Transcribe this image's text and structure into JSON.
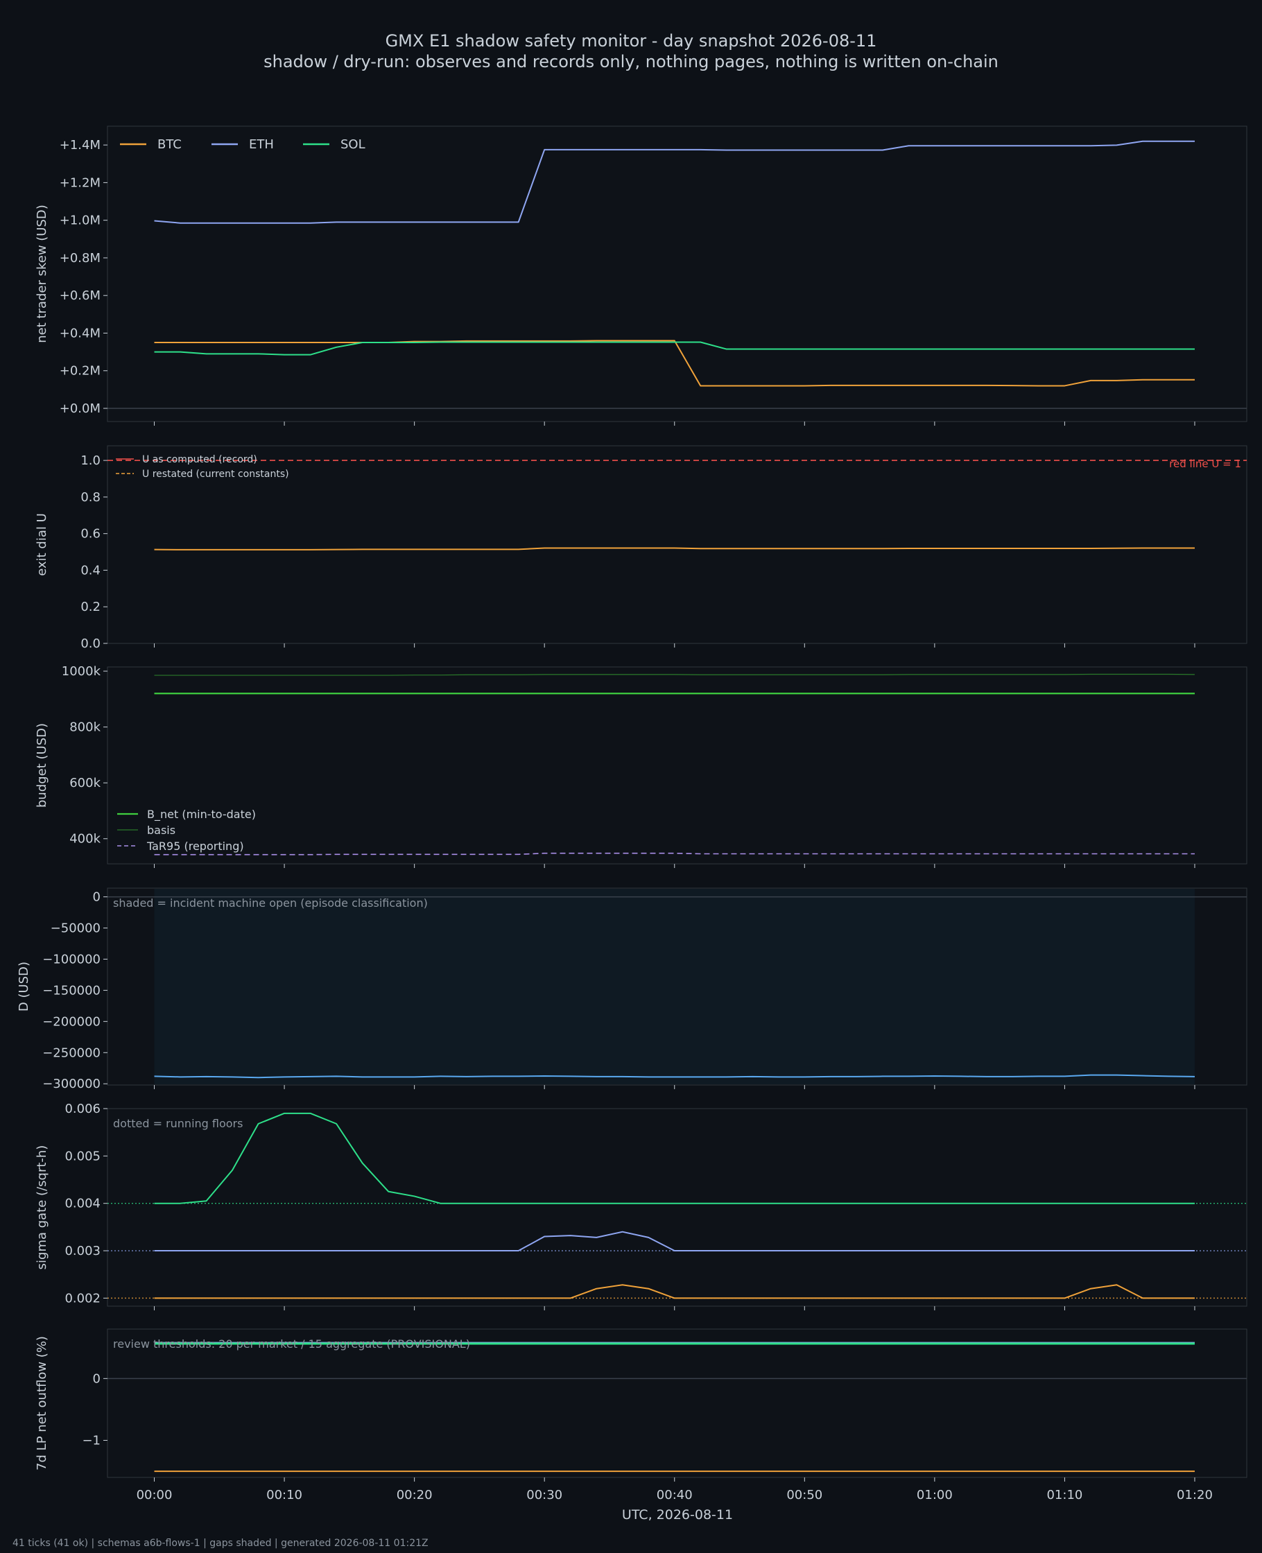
{
  "title": "GMX E1 shadow safety monitor - day snapshot 2026-08-11",
  "subtitle": "shadow / dry-run: observes and records only, nothing pages, nothing is written on-chain",
  "footer": "41 ticks (41 ok) | schemas a6b-flows-1 | gaps shaded | generated 2026-08-11 01:21Z",
  "colors": {
    "background": "#0d1117",
    "panel": "#0e1218",
    "text": "#c9d1d9",
    "muted": "#8b949e",
    "btc": "#f0a23a",
    "eth": "#8fa6f2",
    "sol": "#2ee08a",
    "red": "#f0504b",
    "green": "#3fce3f",
    "purple": "#a98ee8",
    "blue": "#5aa9f0",
    "teal": "#48d1c4"
  },
  "chart_data": {
    "type": "line",
    "x_label": "UTC, 2026-08-11",
    "x_unit": "minutes",
    "x_ticks": [
      "00:00",
      "00:10",
      "00:20",
      "00:30",
      "00:40",
      "00:50",
      "01:00",
      "01:10",
      "01:20"
    ],
    "x_range": [
      -3.6,
      84
    ],
    "x": [
      0,
      2,
      4,
      6,
      8,
      10,
      12,
      14,
      16,
      18,
      20,
      22,
      24,
      26,
      28,
      30,
      32,
      34,
      36,
      38,
      40,
      42,
      44,
      46,
      48,
      50,
      52,
      54,
      56,
      58,
      60,
      62,
      64,
      66,
      68,
      70,
      72,
      74,
      76,
      78,
      80
    ],
    "panels": [
      {
        "id": "skew",
        "ylabel": "net trader skew (USD)",
        "ylim": [
          -0.07,
          1.5
        ],
        "yticks": [
          0,
          0.2,
          0.4,
          0.6,
          0.8,
          1.0,
          1.2,
          1.4
        ],
        "ytick_labels": [
          "+0.0M",
          "+0.2M",
          "+0.4M",
          "+0.6M",
          "+0.8M",
          "+1.0M",
          "+1.2M",
          "+1.4M"
        ],
        "zero_line": 0,
        "legend": "top-left",
        "series": [
          {
            "name": "BTC",
            "color": "#f0a23a",
            "style": "solid",
            "values": [
              0.35,
              0.35,
              0.35,
              0.35,
              0.35,
              0.35,
              0.35,
              0.35,
              0.35,
              0.35,
              0.355,
              0.355,
              0.358,
              0.358,
              0.358,
              0.358,
              0.358,
              0.36,
              0.36,
              0.36,
              0.36,
              0.12,
              0.12,
              0.12,
              0.12,
              0.12,
              0.122,
              0.122,
              0.122,
              0.122,
              0.122,
              0.122,
              0.122,
              0.121,
              0.12,
              0.12,
              0.148,
              0.148,
              0.152,
              0.152,
              0.152
            ]
          },
          {
            "name": "ETH",
            "color": "#8fa6f2",
            "style": "solid",
            "values": [
              0.997,
              0.985,
              0.985,
              0.985,
              0.985,
              0.985,
              0.985,
              0.99,
              0.99,
              0.99,
              0.99,
              0.99,
              0.99,
              0.99,
              0.99,
              1.375,
              1.375,
              1.375,
              1.375,
              1.375,
              1.375,
              1.375,
              1.373,
              1.373,
              1.373,
              1.373,
              1.373,
              1.373,
              1.373,
              1.396,
              1.396,
              1.396,
              1.396,
              1.396,
              1.396,
              1.396,
              1.396,
              1.399,
              1.42,
              1.42,
              1.42
            ]
          },
          {
            "name": "SOL",
            "color": "#2ee08a",
            "style": "solid",
            "values": [
              0.3,
              0.3,
              0.29,
              0.29,
              0.29,
              0.285,
              0.285,
              0.325,
              0.35,
              0.35,
              0.35,
              0.352,
              0.352,
              0.352,
              0.352,
              0.352,
              0.352,
              0.352,
              0.352,
              0.352,
              0.352,
              0.352,
              0.315,
              0.315,
              0.315,
              0.315,
              0.315,
              0.315,
              0.315,
              0.315,
              0.315,
              0.315,
              0.315,
              0.315,
              0.315,
              0.315,
              0.315,
              0.315,
              0.315,
              0.315,
              0.315
            ]
          }
        ]
      },
      {
        "id": "exit-dial",
        "ylabel": "exit dial U",
        "ylim": [
          0,
          1.08
        ],
        "yticks": [
          0,
          0.2,
          0.4,
          0.6,
          0.8,
          1.0
        ],
        "ytick_labels": [
          "0.0",
          "0.2",
          "0.4",
          "0.6",
          "0.8",
          "1.0"
        ],
        "legend": "top-left",
        "hline": {
          "value": 1.0,
          "label": "red line U = 1",
          "color": "#f0504b",
          "style": "dashed"
        },
        "series": [
          {
            "name": "U as computed (record)",
            "color": "#f0504b",
            "style": "solid",
            "values": []
          },
          {
            "name": "U restated (current constants)",
            "color": "#f0a23a",
            "style": "dashed",
            "values": []
          },
          {
            "name": "",
            "color": "#f0a23a",
            "style": "solid",
            "values": [
              0.513,
              0.512,
              0.512,
              0.512,
              0.512,
              0.512,
              0.512,
              0.513,
              0.514,
              0.514,
              0.514,
              0.514,
              0.514,
              0.514,
              0.514,
              0.521,
              0.521,
              0.521,
              0.521,
              0.521,
              0.521,
              0.518,
              0.518,
              0.518,
              0.518,
              0.518,
              0.518,
              0.518,
              0.518,
              0.519,
              0.519,
              0.519,
              0.519,
              0.519,
              0.519,
              0.519,
              0.519,
              0.52,
              0.521,
              0.521,
              0.521
            ]
          }
        ]
      },
      {
        "id": "budget",
        "ylabel": "budget (USD)",
        "ylim": [
          310000,
          1015000
        ],
        "yticks": [
          400000,
          600000,
          800000,
          1000000
        ],
        "ytick_labels": [
          "400k",
          "600k",
          "800k",
          "1000k"
        ],
        "legend": "bottom-left",
        "series": [
          {
            "name": "B_net (min-to-date)",
            "color": "#3fce3f",
            "style": "solid",
            "width": 2.2,
            "values": [
              920000,
              920000,
              920000,
              920000,
              920000,
              920000,
              920000,
              920000,
              920000,
              920000,
              920000,
              920000,
              920000,
              920000,
              920000,
              920000,
              920000,
              920000,
              920000,
              920000,
              920000,
              920000,
              920000,
              920000,
              920000,
              920000,
              920000,
              920000,
              920000,
              920000,
              920000,
              920000,
              920000,
              920000,
              920000,
              920000,
              920000,
              920000,
              920000,
              920000,
              920000
            ]
          },
          {
            "name": "basis",
            "color": "#2a7a2a",
            "style": "solid",
            "width": 1.2,
            "values": [
              985000,
              985000,
              985000,
              985000,
              985000,
              985000,
              985000,
              985000,
              985000,
              985000,
              986000,
              986000,
              987000,
              987000,
              987000,
              988000,
              988000,
              988000,
              988000,
              988000,
              988000,
              987000,
              987000,
              987000,
              987000,
              987000,
              987000,
              987000,
              987000,
              988000,
              988000,
              988000,
              988000,
              988000,
              988000,
              988000,
              989000,
              989000,
              989000,
              989000,
              988000
            ]
          },
          {
            "name": "TaR95 (reporting)",
            "color": "#a98ee8",
            "style": "dashed",
            "width": 1.6,
            "values": [
              343000,
              343000,
              343000,
              343000,
              343000,
              343000,
              343000,
              344000,
              344000,
              344000,
              344000,
              344000,
              344000,
              344000,
              344000,
              348000,
              348000,
              348000,
              348000,
              348000,
              348000,
              346000,
              346000,
              346000,
              346000,
              346000,
              346000,
              346000,
              346000,
              346000,
              346000,
              346000,
              346000,
              346000,
              346000,
              346000,
              346000,
              346000,
              346000,
              346000,
              346000
            ]
          }
        ]
      },
      {
        "id": "d-usd",
        "ylabel": "D (USD)",
        "ylim": [
          -302000,
          14000
        ],
        "yticks": [
          0,
          -50000,
          -100000,
          -150000,
          -200000,
          -250000,
          -300000
        ],
        "ytick_labels": [
          "0",
          "−50000",
          "−100000",
          "−150000",
          "−200000",
          "−250000",
          "−300000"
        ],
        "zero_line": 0,
        "annotation": "shaded = incident machine open (episode classification)",
        "shaded_range": [
          0,
          80
        ],
        "series": [
          {
            "name": "",
            "color": "#5aa9f0",
            "style": "solid",
            "values": [
              -288000,
              -289000,
              -288500,
              -289000,
              -290000,
              -289000,
              -288500,
              -288000,
              -289000,
              -289000,
              -289000,
              -288000,
              -288500,
              -288000,
              -288000,
              -287500,
              -288000,
              -288500,
              -288500,
              -289000,
              -289000,
              -289000,
              -289000,
              -288500,
              -289000,
              -289000,
              -288500,
              -288500,
              -288000,
              -288000,
              -287500,
              -288000,
              -288500,
              -288500,
              -288000,
              -288000,
              -286000,
              -286000,
              -287000,
              -288000,
              -288500
            ]
          }
        ]
      },
      {
        "id": "sigma-gate",
        "ylabel": "sigma gate (/sqrt-h)",
        "ylim": [
          0.00183,
          0.006
        ],
        "yticks": [
          0.002,
          0.003,
          0.004,
          0.005,
          0.006
        ],
        "ytick_labels": [
          "0.002",
          "0.003",
          "0.004",
          "0.005",
          "0.006"
        ],
        "annotation": "dotted = running floors",
        "floors": [
          {
            "value": 0.004,
            "color": "#2ee08a"
          },
          {
            "value": 0.003,
            "color": "#8fa6f2"
          },
          {
            "value": 0.002,
            "color": "#f0a23a"
          }
        ],
        "series": [
          {
            "name": "SOL",
            "color": "#2ee08a",
            "style": "solid",
            "values": [
              0.004,
              0.004,
              0.00405,
              0.0047,
              0.00568,
              0.0059,
              0.0059,
              0.00568,
              0.00485,
              0.00425,
              0.00415,
              0.004,
              0.004,
              0.004,
              0.004,
              0.004,
              0.004,
              0.004,
              0.004,
              0.004,
              0.004,
              0.004,
              0.004,
              0.004,
              0.004,
              0.004,
              0.004,
              0.004,
              0.004,
              0.004,
              0.004,
              0.004,
              0.004,
              0.004,
              0.004,
              0.004,
              0.004,
              0.004,
              0.004,
              0.004,
              0.004
            ]
          },
          {
            "name": "ETH",
            "color": "#8fa6f2",
            "style": "solid",
            "values": [
              0.003,
              0.003,
              0.003,
              0.003,
              0.003,
              0.003,
              0.003,
              0.003,
              0.003,
              0.003,
              0.003,
              0.003,
              0.003,
              0.003,
              0.003,
              0.0033,
              0.00332,
              0.00328,
              0.0034,
              0.00328,
              0.003,
              0.003,
              0.003,
              0.003,
              0.003,
              0.003,
              0.003,
              0.003,
              0.003,
              0.003,
              0.003,
              0.003,
              0.003,
              0.003,
              0.003,
              0.003,
              0.003,
              0.003,
              0.003,
              0.003,
              0.003
            ]
          },
          {
            "name": "BTC",
            "color": "#f0a23a",
            "style": "solid",
            "values": [
              0.002,
              0.002,
              0.002,
              0.002,
              0.002,
              0.002,
              0.002,
              0.002,
              0.002,
              0.002,
              0.002,
              0.002,
              0.002,
              0.002,
              0.002,
              0.002,
              0.002,
              0.0022,
              0.00228,
              0.0022,
              0.002,
              0.002,
              0.002,
              0.002,
              0.002,
              0.002,
              0.002,
              0.002,
              0.002,
              0.002,
              0.002,
              0.002,
              0.002,
              0.002,
              0.002,
              0.002,
              0.0022,
              0.00228,
              0.002,
              0.002,
              0.002
            ]
          }
        ]
      },
      {
        "id": "lp-outflow",
        "ylabel": "7d LP net outflow (%)",
        "ylim": [
          -1.6,
          0.8
        ],
        "yticks": [
          -1,
          0
        ],
        "ytick_labels": [
          "−1",
          "0"
        ],
        "zero_line": 0,
        "annotation": "review thresholds: 20 per market / 15 aggregate (PROVISIONAL)",
        "series": [
          {
            "name": "",
            "color": "#8fa6f2",
            "style": "solid",
            "values": [
              0.575,
              0.575,
              0.575,
              0.575,
              0.575,
              0.575,
              0.575,
              0.575,
              0.575,
              0.575,
              0.575,
              0.575,
              0.575,
              0.575,
              0.575,
              0.575,
              0.575,
              0.575,
              0.575,
              0.575,
              0.575,
              0.575,
              0.575,
              0.575,
              0.575,
              0.575,
              0.575,
              0.575,
              0.575,
              0.575,
              0.575,
              0.575,
              0.575,
              0.575,
              0.575,
              0.575,
              0.575,
              0.575,
              0.575,
              0.575,
              0.575
            ]
          },
          {
            "name": "",
            "color": "#2ee08a",
            "style": "solid",
            "values": [
              0.565,
              0.565,
              0.565,
              0.565,
              0.565,
              0.565,
              0.565,
              0.565,
              0.565,
              0.565,
              0.565,
              0.565,
              0.565,
              0.565,
              0.565,
              0.565,
              0.565,
              0.565,
              0.565,
              0.565,
              0.565,
              0.565,
              0.565,
              0.565,
              0.565,
              0.565,
              0.565,
              0.565,
              0.565,
              0.565,
              0.565,
              0.565,
              0.565,
              0.565,
              0.565,
              0.565,
              0.565,
              0.565,
              0.565,
              0.565,
              0.565
            ]
          },
          {
            "name": "",
            "color": "#f0a23a",
            "style": "solid",
            "values": [
              -1.5,
              -1.5,
              -1.5,
              -1.5,
              -1.5,
              -1.5,
              -1.5,
              -1.5,
              -1.5,
              -1.5,
              -1.5,
              -1.5,
              -1.5,
              -1.5,
              -1.5,
              -1.5,
              -1.5,
              -1.5,
              -1.5,
              -1.5,
              -1.5,
              -1.5,
              -1.5,
              -1.5,
              -1.5,
              -1.5,
              -1.5,
              -1.5,
              -1.5,
              -1.5,
              -1.5,
              -1.5,
              -1.5,
              -1.5,
              -1.5,
              -1.5,
              -1.5,
              -1.5,
              -1.5,
              -1.5,
              -1.5
            ]
          }
        ]
      }
    ]
  }
}
